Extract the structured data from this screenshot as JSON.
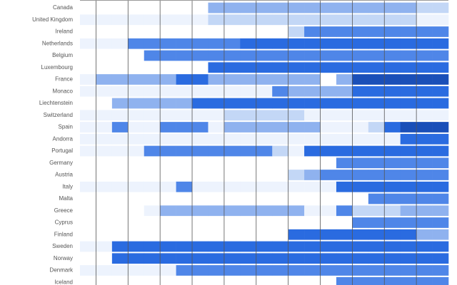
{
  "chart_data": {
    "type": "heatmap",
    "categories": [
      "Canada",
      "United Kingdom",
      "Ireland",
      "Netherlands",
      "Belgium",
      "Luxembourg",
      "France",
      "Monaco",
      "Liechtenstein",
      "Switzerland",
      "Spain",
      "Andorra",
      "Portugal",
      "Germany",
      "Austria",
      "Italy",
      "Malta",
      "Greece",
      "Cyprus",
      "Finland",
      "Sweden",
      "Norway",
      "Denmark",
      "Iceland"
    ],
    "colors": [
      "#ffffff",
      "#edf3fd",
      "#c3d7f6",
      "#8fb2ef",
      "#4f86e8",
      "#2a6be0",
      "#1a4fb8"
    ],
    "grid": true,
    "values": [
      [
        0,
        0,
        0,
        0,
        0,
        0,
        0,
        0,
        3,
        3,
        3,
        3,
        3,
        3,
        3,
        3,
        3,
        3,
        3,
        3,
        3,
        2,
        2
      ],
      [
        1,
        1,
        1,
        1,
        1,
        1,
        1,
        1,
        2,
        2,
        2,
        2,
        2,
        2,
        2,
        2,
        2,
        2,
        2,
        2,
        2,
        1,
        1
      ],
      [
        0,
        0,
        0,
        0,
        0,
        0,
        0,
        0,
        0,
        0,
        0,
        0,
        0,
        2,
        4,
        4,
        4,
        4,
        4,
        4,
        4,
        4,
        4
      ],
      [
        1,
        1,
        1,
        4,
        4,
        4,
        4,
        4,
        4,
        4,
        5,
        5,
        5,
        5,
        5,
        5,
        5,
        5,
        5,
        5,
        5,
        5,
        5
      ],
      [
        0,
        0,
        0,
        0,
        4,
        4,
        4,
        4,
        4,
        4,
        4,
        4,
        4,
        4,
        4,
        4,
        4,
        4,
        4,
        4,
        4,
        4,
        4
      ],
      [
        0,
        0,
        0,
        0,
        0,
        0,
        0,
        0,
        5,
        5,
        5,
        5,
        5,
        5,
        5,
        5,
        5,
        5,
        5,
        5,
        5,
        5,
        5
      ],
      [
        1,
        3,
        3,
        3,
        3,
        3,
        5,
        5,
        3,
        3,
        3,
        3,
        3,
        3,
        3,
        0,
        3,
        6,
        6,
        6,
        6,
        6,
        6
      ],
      [
        1,
        1,
        1,
        1,
        1,
        1,
        1,
        1,
        1,
        1,
        1,
        1,
        4,
        3,
        3,
        3,
        3,
        5,
        5,
        5,
        5,
        5,
        5
      ],
      [
        0,
        0,
        3,
        3,
        3,
        3,
        3,
        5,
        5,
        5,
        5,
        5,
        5,
        5,
        5,
        5,
        5,
        5,
        5,
        5,
        5,
        5,
        5
      ],
      [
        1,
        1,
        1,
        1,
        1,
        1,
        1,
        1,
        1,
        2,
        2,
        2,
        2,
        2,
        1,
        1,
        1,
        1,
        1,
        1,
        1,
        1,
        1
      ],
      [
        1,
        1,
        4,
        1,
        1,
        4,
        4,
        4,
        1,
        3,
        3,
        3,
        3,
        3,
        3,
        1,
        1,
        1,
        2,
        5,
        6,
        6,
        6
      ],
      [
        1,
        1,
        1,
        1,
        1,
        1,
        1,
        1,
        1,
        1,
        1,
        1,
        1,
        1,
        1,
        1,
        1,
        1,
        1,
        1,
        5,
        5,
        5
      ],
      [
        1,
        1,
        1,
        1,
        4,
        4,
        4,
        4,
        4,
        4,
        4,
        4,
        2,
        1,
        5,
        5,
        5,
        5,
        5,
        5,
        5,
        5,
        5
      ],
      [
        0,
        0,
        0,
        0,
        0,
        0,
        0,
        0,
        0,
        0,
        0,
        0,
        0,
        0,
        0,
        0,
        4,
        4,
        4,
        4,
        4,
        4,
        4
      ],
      [
        0,
        0,
        0,
        0,
        0,
        0,
        0,
        0,
        0,
        0,
        0,
        0,
        0,
        2,
        3,
        4,
        4,
        4,
        4,
        4,
        4,
        4,
        4
      ],
      [
        1,
        1,
        1,
        1,
        1,
        1,
        4,
        1,
        1,
        1,
        1,
        1,
        1,
        1,
        1,
        1,
        5,
        5,
        5,
        5,
        5,
        5,
        5
      ],
      [
        0,
        0,
        0,
        0,
        0,
        0,
        0,
        0,
        0,
        0,
        0,
        0,
        0,
        0,
        0,
        0,
        0,
        0,
        4,
        4,
        4,
        4,
        4
      ],
      [
        0,
        0,
        0,
        0,
        1,
        3,
        3,
        3,
        3,
        3,
        3,
        3,
        3,
        3,
        1,
        1,
        4,
        2,
        2,
        2,
        3,
        3,
        3
      ],
      [
        0,
        0,
        0,
        0,
        0,
        0,
        0,
        0,
        0,
        0,
        0,
        0,
        0,
        0,
        0,
        0,
        0,
        4,
        4,
        4,
        4,
        4,
        4
      ],
      [
        0,
        0,
        0,
        0,
        0,
        0,
        0,
        0,
        0,
        0,
        0,
        0,
        0,
        5,
        5,
        5,
        5,
        5,
        5,
        5,
        5,
        3,
        3
      ],
      [
        1,
        1,
        5,
        5,
        5,
        5,
        5,
        5,
        5,
        5,
        5,
        5,
        5,
        5,
        5,
        5,
        5,
        5,
        5,
        5,
        5,
        5,
        5
      ],
      [
        0,
        0,
        5,
        5,
        5,
        5,
        5,
        5,
        5,
        5,
        5,
        5,
        5,
        5,
        5,
        5,
        5,
        5,
        5,
        5,
        5,
        5,
        5
      ],
      [
        1,
        1,
        1,
        1,
        1,
        1,
        4,
        4,
        4,
        4,
        4,
        4,
        4,
        4,
        4,
        4,
        4,
        4,
        4,
        4,
        4,
        4,
        4
      ],
      [
        0,
        0,
        0,
        0,
        0,
        0,
        0,
        0,
        0,
        0,
        0,
        0,
        0,
        0,
        0,
        0,
        4,
        4,
        4,
        4,
        4,
        4,
        4
      ]
    ]
  }
}
